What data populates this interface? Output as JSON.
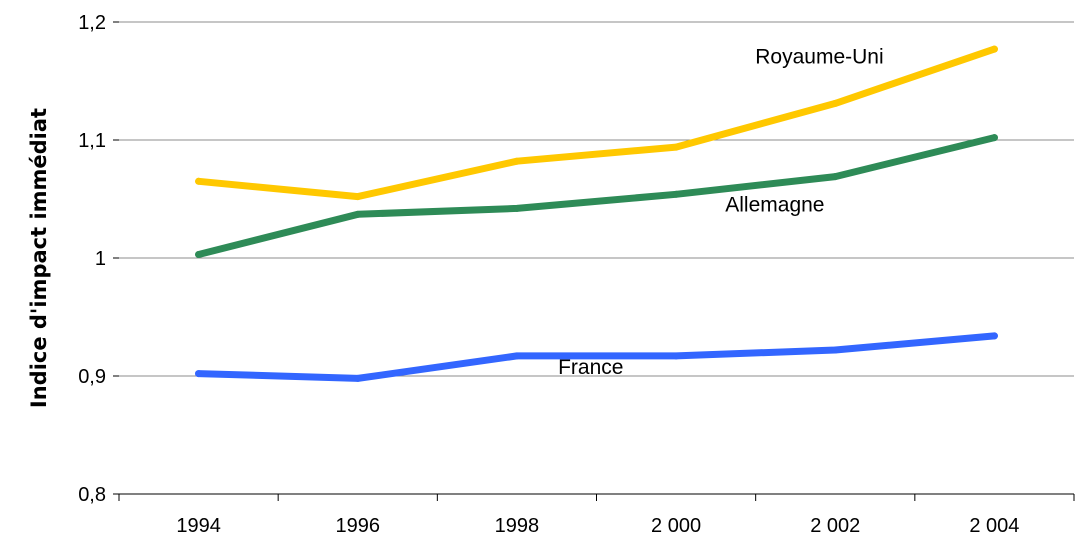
{
  "chart_data": {
    "type": "line",
    "ylabel": "Indice d'impact immédiat",
    "xlabel": "",
    "categories": [
      "1994",
      "1996",
      "1998",
      "2 000",
      "2 002",
      "2 004"
    ],
    "ylim": [
      0.8,
      1.2
    ],
    "yticks": [
      "0,8",
      "0,9",
      "1",
      "1,1",
      "1,2"
    ],
    "ytick_values": [
      0.8,
      0.9,
      1.0,
      1.1,
      1.2
    ],
    "grid": "horizontal",
    "series": [
      {
        "name": "Royaume-Uni",
        "color": "#FFC800",
        "values": [
          1.065,
          1.052,
          1.082,
          1.094,
          1.131,
          1.177
        ]
      },
      {
        "name": "Allemagne",
        "color": "#2E8B57",
        "values": [
          1.003,
          1.037,
          1.042,
          1.054,
          1.069,
          1.102
        ]
      },
      {
        "name": "France",
        "color": "#3366FF",
        "values": [
          0.902,
          0.898,
          0.917,
          0.917,
          0.922,
          0.934
        ]
      }
    ]
  }
}
